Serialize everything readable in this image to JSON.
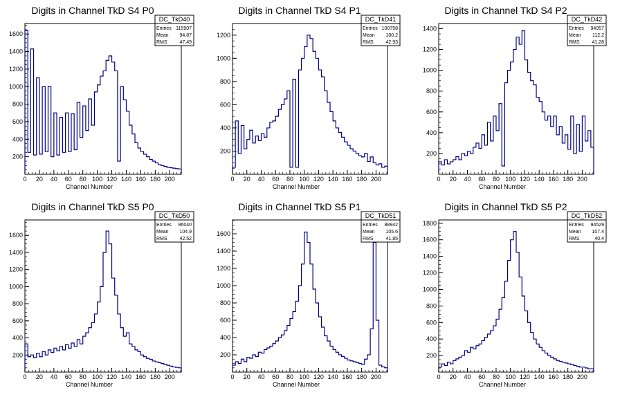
{
  "chart_data": [
    {
      "type": "histogram",
      "title": "Digits in Channel TkD S4 P0",
      "xlabel": "Channel Number",
      "xlim": [
        0,
        216
      ],
      "ylim": [
        0,
        1720
      ],
      "xticks": [
        0,
        20,
        40,
        60,
        80,
        100,
        120,
        140,
        160,
        180,
        200
      ],
      "yticks": [
        200,
        400,
        600,
        800,
        1000,
        1200,
        1400,
        1600
      ],
      "line_color": "#000080",
      "stats": {
        "name": "DC_TkD40",
        "entries": "115907",
        "mean": "94.87",
        "rms": "47.49"
      },
      "x": [
        0,
        4,
        8,
        12,
        16,
        20,
        24,
        28,
        32,
        36,
        40,
        44,
        48,
        52,
        56,
        60,
        64,
        68,
        72,
        76,
        80,
        84,
        88,
        92,
        96,
        100,
        104,
        108,
        112,
        116,
        120,
        124,
        128,
        132,
        136,
        140,
        144,
        148,
        152,
        156,
        160,
        164,
        168,
        172,
        176,
        180,
        184,
        188,
        192,
        196,
        200,
        204,
        208,
        212
      ],
      "values": [
        1640,
        250,
        1430,
        220,
        1100,
        230,
        1000,
        260,
        1000,
        200,
        700,
        220,
        650,
        250,
        700,
        260,
        690,
        280,
        820,
        420,
        780,
        500,
        860,
        560,
        940,
        1020,
        1120,
        1180,
        1300,
        1350,
        1280,
        1180,
        150,
        1000,
        850,
        720,
        560,
        460,
        360,
        300,
        260,
        230,
        200,
        170,
        150,
        130,
        110,
        100,
        90,
        80,
        75,
        70,
        65,
        60
      ]
    },
    {
      "type": "histogram",
      "title": "Digits in Channel TkD S4 P1",
      "xlabel": "Channel Number",
      "xlim": [
        0,
        216
      ],
      "ylim": [
        0,
        1300
      ],
      "xticks": [
        0,
        20,
        40,
        60,
        80,
        100,
        120,
        140,
        160,
        180,
        200
      ],
      "yticks": [
        200,
        400,
        600,
        800,
        1000,
        1200
      ],
      "line_color": "#000080",
      "stats": {
        "name": "DC_TkD41",
        "entries": "100758",
        "mean": "100.2",
        "rms": "42.93"
      },
      "x": [
        0,
        4,
        8,
        12,
        16,
        20,
        24,
        28,
        32,
        36,
        40,
        44,
        48,
        52,
        56,
        60,
        64,
        68,
        72,
        76,
        80,
        84,
        88,
        92,
        96,
        100,
        104,
        108,
        112,
        116,
        120,
        124,
        128,
        132,
        136,
        140,
        144,
        148,
        152,
        156,
        160,
        164,
        168,
        172,
        176,
        180,
        184,
        188,
        192,
        196,
        200,
        204,
        208,
        212
      ],
      "values": [
        60,
        460,
        180,
        420,
        220,
        300,
        380,
        270,
        330,
        290,
        350,
        320,
        400,
        450,
        460,
        500,
        560,
        600,
        650,
        720,
        60,
        820,
        60,
        900,
        1000,
        1100,
        1200,
        1170,
        1060,
        1000,
        900,
        840,
        720,
        620,
        540,
        460,
        400,
        360,
        320,
        280,
        250,
        220,
        200,
        180,
        160,
        150,
        180,
        110,
        150,
        100,
        80,
        90,
        60,
        70
      ]
    },
    {
      "type": "histogram",
      "title": "Digits in Channel TkD S4 P2",
      "xlabel": "Channel Number",
      "xlim": [
        0,
        216
      ],
      "ylim": [
        0,
        1450
      ],
      "xticks": [
        0,
        20,
        40,
        60,
        80,
        100,
        120,
        140,
        160,
        180,
        200
      ],
      "yticks": [
        200,
        400,
        600,
        800,
        1000,
        1200,
        1400
      ],
      "line_color": "#000080",
      "stats": {
        "name": "DC_TkD42",
        "entries": "94957",
        "mean": "112.2",
        "rms": "41.28"
      },
      "x": [
        0,
        4,
        8,
        12,
        16,
        20,
        24,
        28,
        32,
        36,
        40,
        44,
        48,
        52,
        56,
        60,
        64,
        68,
        72,
        76,
        80,
        84,
        88,
        92,
        96,
        100,
        104,
        108,
        112,
        116,
        120,
        124,
        128,
        132,
        136,
        140,
        144,
        148,
        152,
        156,
        160,
        164,
        168,
        172,
        176,
        180,
        184,
        188,
        192,
        196,
        200,
        204,
        208,
        212
      ],
      "values": [
        120,
        90,
        140,
        100,
        120,
        140,
        170,
        140,
        200,
        180,
        220,
        200,
        260,
        300,
        250,
        380,
        280,
        500,
        320,
        560,
        420,
        680,
        80,
        880,
        1000,
        1080,
        1200,
        1320,
        1250,
        1380,
        1100,
        980,
        900,
        860,
        740,
        700,
        600,
        520,
        560,
        460,
        560,
        380,
        460,
        300,
        380,
        240,
        560,
        200,
        480,
        220,
        560,
        320,
        420,
        260
      ]
    },
    {
      "type": "histogram",
      "title": "Digits in Channel TkD S5 P0",
      "xlabel": "Channel Number",
      "xlim": [
        0,
        216
      ],
      "ylim": [
        0,
        1780
      ],
      "xticks": [
        0,
        20,
        40,
        60,
        80,
        100,
        120,
        140,
        160,
        180,
        200
      ],
      "yticks": [
        200,
        400,
        600,
        800,
        1000,
        1200,
        1400,
        1600
      ],
      "line_color": "#000080",
      "stats": {
        "name": "DC_TkD50",
        "entries": "86040",
        "mean": "104.9",
        "rms": "42.52"
      },
      "x": [
        0,
        4,
        8,
        12,
        16,
        20,
        24,
        28,
        32,
        36,
        40,
        44,
        48,
        52,
        56,
        60,
        64,
        68,
        72,
        76,
        80,
        84,
        88,
        92,
        96,
        100,
        104,
        108,
        112,
        116,
        120,
        124,
        128,
        132,
        136,
        140,
        144,
        148,
        152,
        156,
        160,
        164,
        168,
        172,
        176,
        180,
        184,
        188,
        192,
        196,
        200,
        204,
        208,
        212
      ],
      "values": [
        330,
        180,
        200,
        170,
        220,
        180,
        240,
        200,
        260,
        230,
        280,
        250,
        300,
        260,
        320,
        280,
        340,
        300,
        380,
        330,
        420,
        460,
        520,
        580,
        680,
        820,
        1000,
        1400,
        1650,
        1500,
        1100,
        900,
        680,
        520,
        420,
        460,
        330,
        300,
        260,
        240,
        200,
        180,
        160,
        150,
        130,
        120,
        110,
        100,
        90,
        80,
        70,
        60,
        55,
        50
      ]
    },
    {
      "type": "histogram",
      "title": "Digits in Channel TkD S5 P1",
      "xlabel": "Channel Number",
      "xlim": [
        0,
        216
      ],
      "ylim": [
        0,
        1760
      ],
      "xticks": [
        0,
        20,
        40,
        60,
        80,
        100,
        120,
        140,
        160,
        180,
        200
      ],
      "yticks": [
        200,
        400,
        600,
        800,
        1000,
        1200,
        1400,
        1600
      ],
      "line_color": "#000080",
      "stats": {
        "name": "DC_TkD51",
        "entries": "88942",
        "mean": "105.6",
        "rms": "41.85"
      },
      "x": [
        0,
        4,
        8,
        12,
        16,
        20,
        24,
        28,
        32,
        36,
        40,
        44,
        48,
        52,
        56,
        60,
        64,
        68,
        72,
        76,
        80,
        84,
        88,
        92,
        96,
        100,
        104,
        108,
        112,
        116,
        120,
        124,
        128,
        132,
        136,
        140,
        144,
        148,
        152,
        156,
        160,
        164,
        168,
        172,
        176,
        180,
        184,
        188,
        192,
        196,
        200,
        204,
        208,
        212
      ],
      "values": [
        80,
        120,
        100,
        150,
        120,
        170,
        160,
        200,
        180,
        230,
        220,
        260,
        280,
        300,
        330,
        360,
        400,
        430,
        480,
        540,
        620,
        700,
        820,
        1000,
        1250,
        1620,
        1500,
        1250,
        960,
        800,
        640,
        520,
        420,
        360,
        300,
        260,
        230,
        200,
        180,
        160,
        140,
        130,
        120,
        110,
        100,
        90,
        150,
        200,
        500,
        1500,
        600,
        80,
        60,
        50
      ]
    },
    {
      "type": "histogram",
      "title": "Digits in Channel TkD S5 P2",
      "xlabel": "Channel Number",
      "xlim": [
        0,
        216
      ],
      "ylim": [
        0,
        1840
      ],
      "xticks": [
        0,
        20,
        40,
        60,
        80,
        100,
        120,
        140,
        160,
        180,
        200
      ],
      "yticks": [
        200,
        400,
        600,
        800,
        1000,
        1200,
        1400,
        1600,
        1800
      ],
      "line_color": "#000080",
      "stats": {
        "name": "DC_TkD52",
        "entries": "94529",
        "mean": "107.4",
        "rms": "40.4"
      },
      "x": [
        0,
        4,
        8,
        12,
        16,
        20,
        24,
        28,
        32,
        36,
        40,
        44,
        48,
        52,
        56,
        60,
        64,
        68,
        72,
        76,
        80,
        84,
        88,
        92,
        96,
        100,
        104,
        108,
        112,
        116,
        120,
        124,
        128,
        132,
        136,
        140,
        144,
        148,
        152,
        156,
        160,
        164,
        168,
        172,
        176,
        180,
        184,
        188,
        192,
        196,
        200,
        204,
        208,
        212
      ],
      "values": [
        60,
        100,
        80,
        120,
        100,
        140,
        160,
        180,
        200,
        260,
        240,
        300,
        280,
        320,
        340,
        380,
        420,
        460,
        500,
        560,
        640,
        760,
        900,
        1100,
        1350,
        1600,
        1700,
        1450,
        1150,
        920,
        740,
        600,
        480,
        400,
        340,
        300,
        260,
        230,
        200,
        180,
        160,
        140,
        130,
        120,
        110,
        100,
        90,
        80,
        70,
        60,
        60,
        50,
        40,
        40
      ]
    }
  ]
}
